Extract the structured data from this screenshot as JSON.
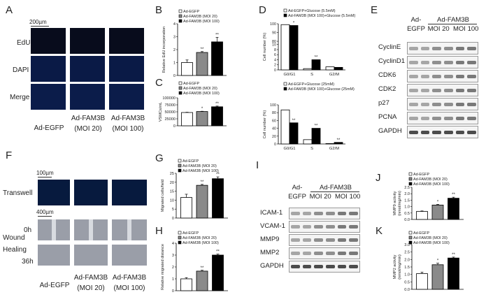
{
  "panel_letters": {
    "A": "A",
    "B": "B",
    "C": "C",
    "D": "D",
    "E": "E",
    "F": "F",
    "G": "G",
    "H": "H",
    "I": "I",
    "J": "J",
    "K": "K"
  },
  "panelA": {
    "scale": "200µm",
    "rows": [
      "EdU",
      "DAPI",
      "Merge"
    ],
    "groups": [
      "Ad-EGFP",
      "Ad-FAM3B\n(MOI 20)",
      "Ad-FAM3B\n(MOI 100)"
    ]
  },
  "panelF": {
    "scale_top": "100µm",
    "scale_bottom": "400µm",
    "rows": [
      "Transwell",
      "Wound",
      "0h",
      "Healing",
      "36h"
    ],
    "groups": [
      "Ad-EGFP",
      "Ad-FAM3B\n(MOI 20)",
      "Ad-FAM3B\n(MOI 100)"
    ]
  },
  "panelE": {
    "header_left": "Ad-\nEGFP",
    "header_right_title": "Ad-FAM3B",
    "header_right_sub": "MOI 20  MOI 100",
    "bands": [
      "CyclinE",
      "CyclinD1",
      "CDK6",
      "CDK2",
      "p27",
      "PCNA",
      "GAPDH"
    ]
  },
  "panelI": {
    "header_left": "Ad-\nEGFP",
    "header_right_title": "Ad-FAM3B",
    "header_right_sub": "MOI 20  MOI 100",
    "bands": [
      "ICAM-1",
      "VCAM-1",
      "MMP9",
      "MMP2",
      "GAPDH"
    ]
  },
  "colors": {
    "egfp": "#ffffff",
    "moi20": "#8a8a8a",
    "moi100": "#000000"
  },
  "chart_data": [
    {
      "id": "B",
      "type": "bar",
      "legend": [
        "Ad-EGFP",
        "Ad-FAM3B (MOI 20)",
        "Ad-FAM3B (MOI 100)"
      ],
      "ylabel": "Relative EdU incorporation",
      "ylim": [
        0,
        4
      ],
      "yticks": [
        "0",
        "1",
        "2",
        "3",
        "4"
      ],
      "values": [
        1.0,
        1.78,
        2.6
      ],
      "errors": [
        0.2,
        0.07,
        0.35
      ],
      "sig": [
        "",
        "**",
        "**"
      ]
    },
    {
      "id": "C",
      "type": "bar",
      "legend": [
        "Ad-EGFP",
        "Ad-FAM3B (MOI 20)",
        "Ad-FAM3B (MOI 100)"
      ],
      "ylabel": "VSMCs/mL",
      "ylim": [
        0,
        100000
      ],
      "yticks": [
        "0",
        "25000",
        "50000",
        "75000",
        "100000"
      ],
      "values": [
        47500,
        51000,
        68000
      ],
      "errors": [
        1000,
        1000,
        2500
      ],
      "sig": [
        "",
        "*",
        "**"
      ]
    },
    {
      "id": "D1",
      "type": "bar",
      "legend": [
        "Ad-EGFP+Glucose (5.5mM)",
        "Ad-FAM3B (MOI 100)+Glucose (5.5mM)"
      ],
      "ylabel": "Cell number (%)",
      "categories": [
        "G0/G1",
        "S",
        "G2/M"
      ],
      "ylim": [
        0,
        100
      ],
      "yticks": [
        "0",
        "2",
        "4",
        "6",
        "8",
        "10",
        "80",
        "90",
        "100"
      ],
      "series": [
        {
          "values": [
            99,
            0.5,
            1.2
          ]
        },
        {
          "values": [
            98,
            4.0,
            1.0
          ]
        }
      ],
      "sig": [
        [
          "",
          "*"
        ],
        [
          "",
          "**"
        ],
        [
          "",
          ""
        ]
      ]
    },
    {
      "id": "D2",
      "type": "bar",
      "legend": [
        "Ad-EGFP+Glucose (25mM)",
        "Ad-FAM3B (MOI 100)+Glucose (25mM)"
      ],
      "ylabel": "Cell number (%)",
      "categories": [
        "G0/G1",
        "S",
        "G2/M"
      ],
      "ylim": [
        0,
        100
      ],
      "yticks": [
        "0",
        "20",
        "40",
        "60",
        "80",
        "100"
      ],
      "series": [
        {
          "values": [
            87,
            11,
            1
          ]
        },
        {
          "values": [
            54,
            40,
            4
          ]
        }
      ],
      "sig": [
        [
          "",
          "**"
        ],
        [
          "",
          "**"
        ],
        [
          "",
          "**"
        ]
      ]
    },
    {
      "id": "G",
      "type": "bar",
      "legend": [
        "Ad-EGFP",
        "Ad-FAM3B (MOI 20)",
        "Ad-FAM3B (MOI 100)"
      ],
      "ylabel": "Migrated cells/field",
      "ylim": [
        0,
        25
      ],
      "yticks": [
        "0",
        "5",
        "10",
        "15",
        "20",
        "25"
      ],
      "values": [
        11.5,
        18.3,
        22.0
      ],
      "errors": [
        1.8,
        0.5,
        1.0
      ],
      "sig": [
        "",
        "**",
        "**"
      ]
    },
    {
      "id": "H",
      "type": "bar",
      "legend": [
        "Ad-EGFP",
        "Ad-FAM3B (MOI 20)",
        "Ad-FAM3B (MOI 100)"
      ],
      "ylabel": "Relative migrated distance",
      "ylim": [
        0,
        4
      ],
      "yticks": [
        "0",
        "1",
        "2",
        "3",
        "4"
      ],
      "values": [
        1.0,
        1.65,
        3.0
      ],
      "errors": [
        0.1,
        0.07,
        0.08
      ],
      "sig": [
        "",
        "**",
        "**"
      ]
    },
    {
      "id": "J",
      "type": "bar",
      "legend": [
        "Ad-EGFP",
        "Ad-FAM3B (MOI 20)",
        "Ad-FAM3B (MOI 100)"
      ],
      "ylabel": "MMP9 activity\n(nmol/mg/min)",
      "ylim": [
        0,
        2.5
      ],
      "yticks": [
        "0.0",
        "0.5",
        "1.0",
        "1.5",
        "2.0",
        "2.5"
      ],
      "values": [
        0.62,
        1.12,
        1.65
      ],
      "errors": [
        0.04,
        0.05,
        0.08
      ],
      "sig": [
        "",
        "*",
        "**"
      ]
    },
    {
      "id": "K",
      "type": "bar",
      "legend": [
        "Ad-EGFP",
        "Ad-FAM3B (MOI 20)",
        "Ad-FAM3B (MOI 100)"
      ],
      "ylabel": "MMP2 activity\n(nmol/mg/min)",
      "ylim": [
        0,
        3.0
      ],
      "yticks": [
        "0.0",
        "0.5",
        "1.0",
        "1.5",
        "2.0",
        "2.5",
        "3.0"
      ],
      "values": [
        1.05,
        1.65,
        2.1
      ],
      "errors": [
        0.1,
        0.1,
        0.06
      ],
      "sig": [
        "",
        "*",
        "**"
      ]
    }
  ]
}
